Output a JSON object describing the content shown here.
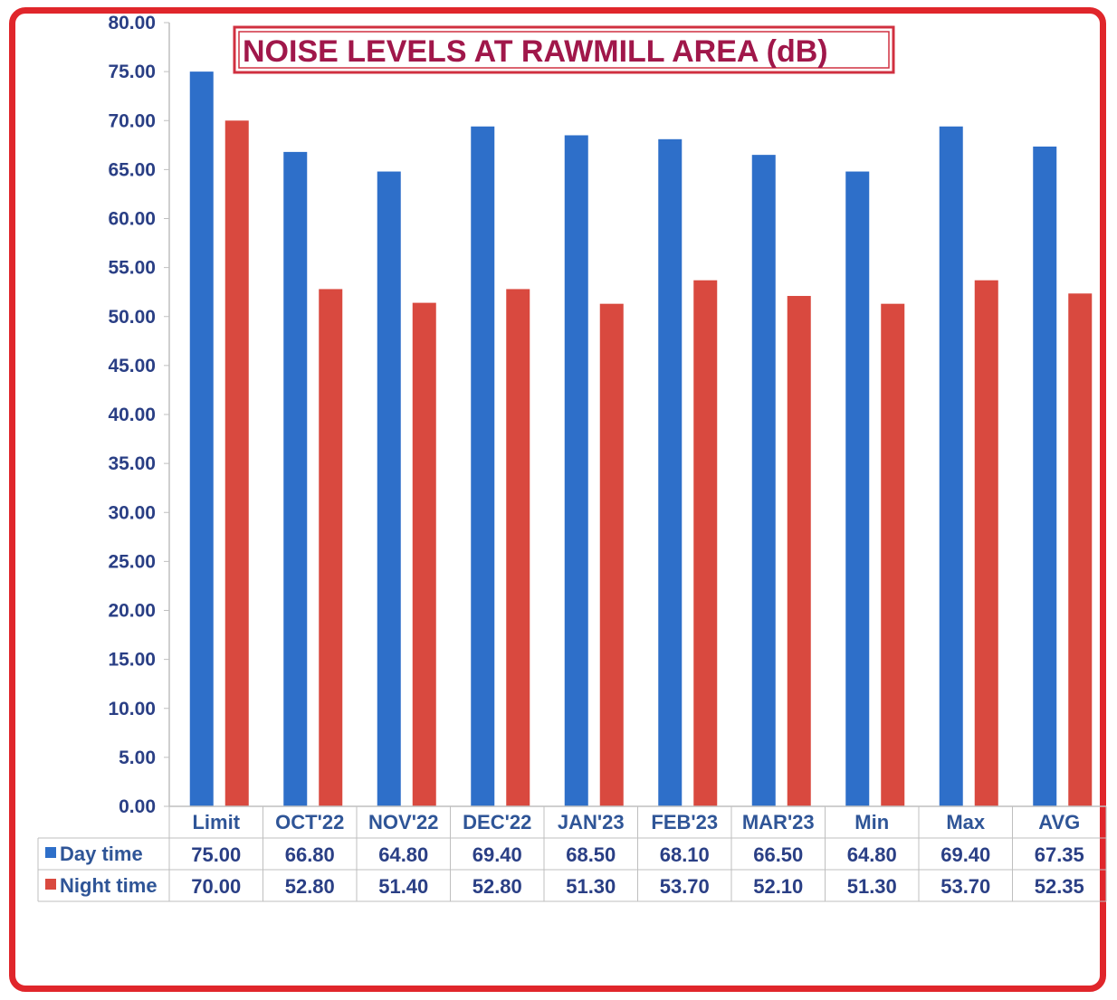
{
  "chart_data": {
    "type": "bar",
    "title": "NOISE LEVELS AT RAWMILL AREA   (dB)",
    "categories": [
      "Limit",
      "OCT'22",
      "NOV'22",
      "DEC'22",
      "JAN'23",
      "FEB'23",
      "MAR'23",
      "Min",
      "Max",
      "AVG"
    ],
    "series": [
      {
        "name": "Day time",
        "color": "#2e6fc9",
        "values": [
          75.0,
          66.8,
          64.8,
          69.4,
          68.5,
          68.1,
          66.5,
          64.8,
          69.4,
          67.35
        ],
        "labels": [
          "75.00",
          "66.80",
          "64.80",
          "69.40",
          "68.50",
          "68.10",
          "66.50",
          "64.80",
          "69.40",
          "67.35"
        ]
      },
      {
        "name": "Night time",
        "color": "#d9493f",
        "values": [
          70.0,
          52.8,
          51.4,
          52.8,
          51.3,
          53.7,
          52.1,
          51.3,
          53.7,
          52.35
        ],
        "labels": [
          "70.00",
          "52.80",
          "51.40",
          "52.80",
          "51.30",
          "53.70",
          "52.10",
          "51.30",
          "53.70",
          "52.35"
        ]
      }
    ],
    "ylim": [
      0,
      80
    ],
    "yticks": [
      "0.00",
      "5.00",
      "10.00",
      "15.00",
      "20.00",
      "25.00",
      "30.00",
      "35.00",
      "40.00",
      "45.00",
      "50.00",
      "55.00",
      "60.00",
      "65.00",
      "70.00",
      "75.00",
      "80.00"
    ],
    "grid": false,
    "legend": "data-table-left",
    "frame_color": "#e0262b",
    "title_color": "#a0174a"
  }
}
